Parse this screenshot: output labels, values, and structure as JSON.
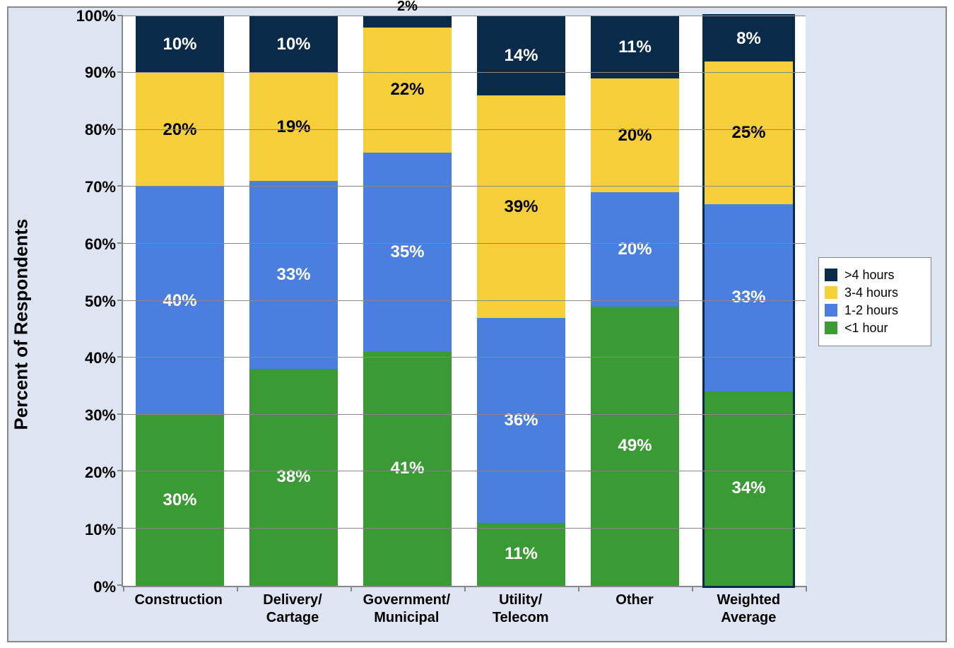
{
  "chart": {
    "type": "stacked-bar-100",
    "y_axis": {
      "label": "Percent of Respondents",
      "min": 0,
      "max": 100,
      "tick_step": 10,
      "tick_format_suffix": "%",
      "label_fontsize": 26,
      "tick_fontsize": 22
    },
    "background_color": "#dde4f2",
    "plot_background_color": "#ffffff",
    "grid_color": "#888888",
    "border_color": "#888888",
    "bar_width_ratio": 0.78,
    "categories": [
      {
        "label_line1": "Construction",
        "label_line2": "",
        "highlighted": false
      },
      {
        "label_line1": "Delivery/",
        "label_line2": "Cartage",
        "highlighted": false
      },
      {
        "label_line1": "Government/",
        "label_line2": "Municipal",
        "highlighted": false
      },
      {
        "label_line1": "Utility/",
        "label_line2": "Telecom",
        "highlighted": false
      },
      {
        "label_line1": "Other",
        "label_line2": "",
        "highlighted": false
      },
      {
        "label_line1": "Weighted",
        "label_line2": "Average",
        "highlighted": true
      }
    ],
    "series": [
      {
        "key": "lt1",
        "name": "<1 hour",
        "color": "#3a9b35",
        "label_color": "#ffffff"
      },
      {
        "key": "h12",
        "name": "1-2 hours",
        "color": "#4a7fe0",
        "label_color": "#ffffff"
      },
      {
        "key": "h34",
        "name": "3-4 hours",
        "color": "#f6cf3a",
        "label_color": "#000000"
      },
      {
        "key": "gt4",
        "name": ">4 hours",
        "color": "#0a2a4a",
        "label_color": "#ffffff"
      }
    ],
    "legend_order": [
      "gt4",
      "h34",
      "h12",
      "lt1"
    ],
    "data": [
      {
        "lt1": 30,
        "h12": 40,
        "h34": 20,
        "gt4": 10
      },
      {
        "lt1": 38,
        "h12": 33,
        "h34": 19,
        "gt4": 10
      },
      {
        "lt1": 41,
        "h12": 35,
        "h34": 22,
        "gt4": 2
      },
      {
        "lt1": 11,
        "h12": 36,
        "h34": 39,
        "gt4": 14
      },
      {
        "lt1": 49,
        "h12": 20,
        "h34": 20,
        "gt4": 11
      },
      {
        "lt1": 34,
        "h12": 33,
        "h34": 25,
        "gt4": 8
      }
    ],
    "label_fontsize": 24,
    "small_segment_threshold": 5,
    "x_label_fontsize": 20,
    "legend": {
      "fontsize": 18,
      "swatch_size": 18,
      "background": "#ffffff",
      "border_color": "#888888"
    },
    "highlight_outline_color": "#0a2a4a"
  }
}
